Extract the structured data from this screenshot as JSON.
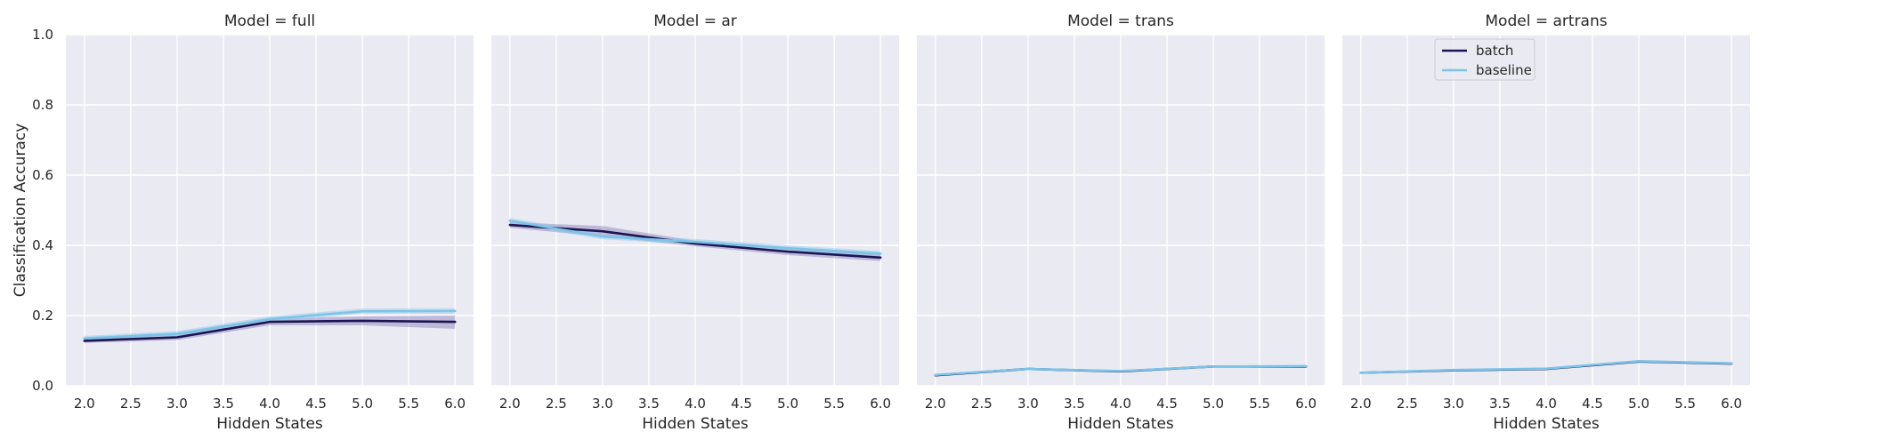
{
  "chart_data": {
    "type": "line",
    "layout": "facet-grid-1x4",
    "shared_y": true,
    "xlabel": "Hidden States",
    "ylabel": "Classification Accuracy",
    "ylim": [
      0.0,
      1.0
    ],
    "yticks": [
      "0.0",
      "0.2",
      "0.4",
      "0.6",
      "0.8",
      "1.0"
    ],
    "xlim": [
      1.8,
      6.2
    ],
    "xticks": [
      "2.0",
      "2.5",
      "3.0",
      "3.5",
      "4.0",
      "4.5",
      "5.0",
      "5.5",
      "6.0"
    ],
    "grid": true,
    "background": "#eaeaf2",
    "legend": {
      "panel": 3,
      "placement": "upper-center",
      "entries": [
        "batch",
        "baseline"
      ]
    },
    "series_colors": {
      "batch": "#1c1553",
      "baseline": "#7cc3e8"
    },
    "band_colors": {
      "batch": "#8a7db8",
      "baseline": "#8ec9ea"
    },
    "panels": [
      {
        "title": "Model = full",
        "x": [
          2,
          3,
          4,
          5,
          6
        ],
        "series": [
          {
            "name": "batch",
            "values": [
              0.128,
              0.138,
              0.182,
              0.185,
              0.182
            ],
            "lower": [
              0.122,
              0.13,
              0.172,
              0.172,
              0.162
            ],
            "upper": [
              0.134,
              0.146,
              0.19,
              0.198,
              0.2
            ]
          },
          {
            "name": "baseline",
            "values": [
              0.135,
              0.148,
              0.19,
              0.212,
              0.213
            ],
            "lower": [
              0.128,
              0.14,
              0.182,
              0.205,
              0.205
            ],
            "upper": [
              0.142,
              0.156,
              0.198,
              0.22,
              0.221
            ]
          }
        ]
      },
      {
        "title": "Model = ar",
        "x": [
          2,
          3,
          4,
          5,
          6
        ],
        "series": [
          {
            "name": "batch",
            "values": [
              0.458,
              0.44,
              0.405,
              0.382,
              0.365
            ],
            "lower": [
              0.45,
              0.425,
              0.397,
              0.372,
              0.355
            ],
            "upper": [
              0.466,
              0.455,
              0.413,
              0.392,
              0.375
            ]
          },
          {
            "name": "baseline",
            "values": [
              0.47,
              0.425,
              0.41,
              0.392,
              0.376
            ],
            "lower": [
              0.462,
              0.417,
              0.402,
              0.384,
              0.368
            ],
            "upper": [
              0.478,
              0.433,
              0.418,
              0.4,
              0.384
            ]
          }
        ]
      },
      {
        "title": "Model = trans",
        "x": [
          2,
          3,
          4,
          5,
          6
        ],
        "series": [
          {
            "name": "batch",
            "values": [
              0.03,
              0.048,
              0.041,
              0.055,
              0.055
            ],
            "lower": [
              0.028,
              0.046,
              0.039,
              0.053,
              0.053
            ],
            "upper": [
              0.032,
              0.05,
              0.043,
              0.057,
              0.057
            ]
          },
          {
            "name": "baseline",
            "values": [
              0.031,
              0.048,
              0.042,
              0.055,
              0.056
            ],
            "lower": [
              0.029,
              0.046,
              0.04,
              0.053,
              0.054
            ],
            "upper": [
              0.033,
              0.05,
              0.044,
              0.057,
              0.058
            ]
          }
        ]
      },
      {
        "title": "Model = artrans",
        "x": [
          2,
          3,
          4,
          5,
          6
        ],
        "series": [
          {
            "name": "batch",
            "values": [
              0.037,
              0.044,
              0.048,
              0.069,
              0.063
            ],
            "lower": [
              0.035,
              0.042,
              0.046,
              0.067,
              0.061
            ],
            "upper": [
              0.039,
              0.046,
              0.05,
              0.071,
              0.065
            ]
          },
          {
            "name": "baseline",
            "values": [
              0.037,
              0.045,
              0.049,
              0.07,
              0.064
            ],
            "lower": [
              0.035,
              0.043,
              0.047,
              0.068,
              0.062
            ],
            "upper": [
              0.039,
              0.047,
              0.051,
              0.072,
              0.066
            ]
          }
        ]
      }
    ]
  }
}
